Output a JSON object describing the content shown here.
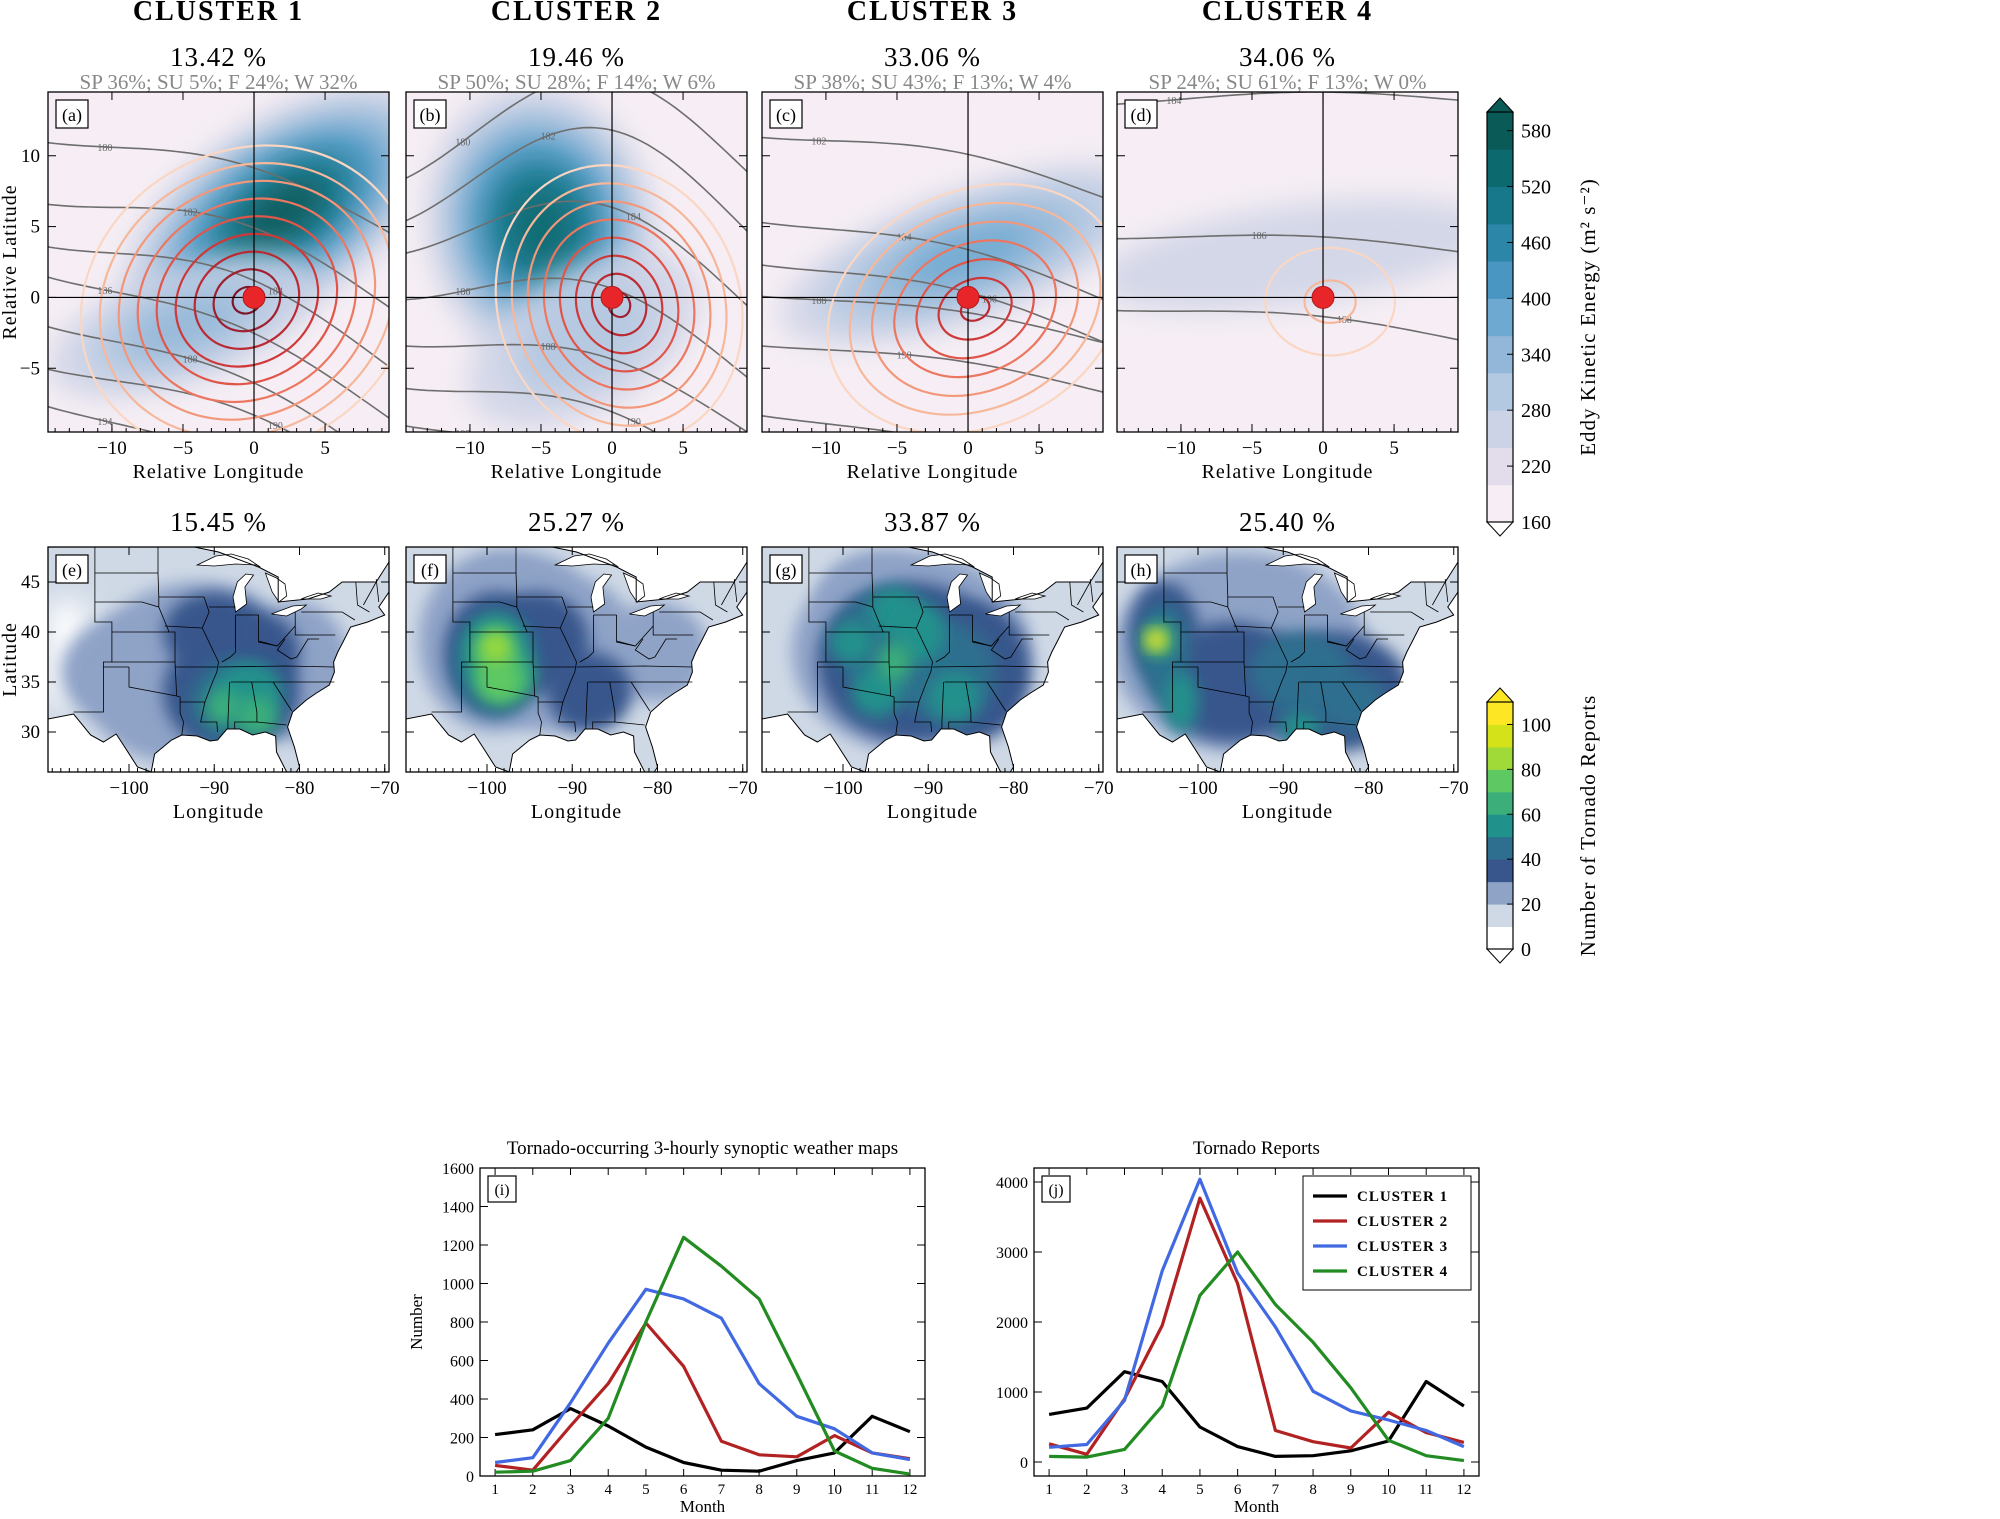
{
  "clusters": [
    {
      "title": "CLUSTER 1",
      "pct_top": "13.42 %",
      "seasons": "SP 36%; SU  5%; F 24%; W 32%",
      "pct_bottom": "15.45 %",
      "label_top": "(a)",
      "label_bottom": "(e)"
    },
    {
      "title": "CLUSTER 2",
      "pct_top": "19.46 %",
      "seasons": "SP 50%; SU 28%; F 14%; W  6%",
      "pct_bottom": "25.27 %",
      "label_top": "(b)",
      "label_bottom": "(f)"
    },
    {
      "title": "CLUSTER 3",
      "pct_top": "33.06 %",
      "seasons": "SP 38%; SU 43%; F 13%; W  4%",
      "pct_bottom": "33.87 %",
      "label_top": "(c)",
      "label_bottom": "(g)"
    },
    {
      "title": "CLUSTER 4",
      "pct_top": "34.06 %",
      "seasons": "SP 24%; SU 61%; F 13%; W  0%",
      "pct_bottom": "25.40 %",
      "label_top": "(d)",
      "label_bottom": "(h)"
    }
  ],
  "composite_maps": {
    "xlabel": "Relative Longitude",
    "ylabel": "Relative Latitude",
    "xticks": [
      -10,
      -5,
      0,
      5
    ],
    "yticks": [
      -5,
      0,
      5,
      10
    ],
    "xrange": [
      -14.5,
      9.5
    ],
    "yrange": [
      -9.5,
      14.5
    ],
    "colorbar": {
      "label": "Eddy Kinetic Energy (m² s⁻²)",
      "ticks": [
        160,
        220,
        280,
        340,
        400,
        460,
        520,
        580
      ],
      "colors": [
        "#f6eef4",
        "#e3dcea",
        "#cdd3e6",
        "#b3c8e1",
        "#93b7d8",
        "#6ea9d1",
        "#4a96c3",
        "#2b86a8",
        "#16788a",
        "#0c6a6f",
        "#0a5a58"
      ]
    }
  },
  "report_maps": {
    "xlabel": "Longitude",
    "ylabel": "Latitude",
    "xticks": [
      -100,
      -90,
      -80,
      -70
    ],
    "yticks": [
      30,
      35,
      40,
      45
    ],
    "xrange": [
      -109.5,
      -69.5
    ],
    "yrange": [
      26,
      48.5
    ],
    "colorbar": {
      "label": "Number of Tornado Reports",
      "ticks": [
        0,
        20,
        40,
        60,
        80,
        100
      ],
      "colors": [
        "#ffffff",
        "#cfd9e6",
        "#8fa3c7",
        "#39568c",
        "#2e6e8e",
        "#21918c",
        "#3bae7a",
        "#5ec962",
        "#a0da39",
        "#d4e21a",
        "#fde725"
      ]
    }
  },
  "line_charts": [
    {
      "type": "line",
      "label": "(i)",
      "title": "Tornado-occurring 3-hourly synoptic weather maps",
      "xlabel": "Month",
      "ylabel": "Number",
      "x": [
        1,
        2,
        3,
        4,
        5,
        6,
        7,
        8,
        9,
        10,
        11,
        12
      ],
      "ylim": [
        0,
        1600
      ],
      "yticks": [
        0,
        200,
        400,
        600,
        800,
        1000,
        1200,
        1400,
        1600
      ],
      "series": [
        {
          "name": "CLUSTER 1",
          "color": "#000000",
          "values": [
            215,
            240,
            350,
            260,
            150,
            70,
            30,
            25,
            80,
            120,
            310,
            230
          ]
        },
        {
          "name": "CLUSTER 2",
          "color": "#b22222",
          "values": [
            55,
            30,
            260,
            480,
            795,
            570,
            180,
            110,
            100,
            210,
            120,
            90
          ]
        },
        {
          "name": "CLUSTER 3",
          "color": "#4169e1",
          "values": [
            70,
            95,
            380,
            690,
            970,
            920,
            820,
            480,
            310,
            245,
            120,
            85
          ]
        },
        {
          "name": "CLUSTER 4",
          "color": "#228b22",
          "values": [
            20,
            25,
            80,
            300,
            800,
            1240,
            1090,
            920,
            530,
            130,
            40,
            10
          ]
        }
      ]
    },
    {
      "type": "line",
      "label": "(j)",
      "title": "Tornado Reports",
      "xlabel": "Month",
      "ylabel": "",
      "x": [
        1,
        2,
        3,
        4,
        5,
        6,
        7,
        8,
        9,
        10,
        11,
        12
      ],
      "ylim": [
        -200,
        4200
      ],
      "yticks": [
        0,
        1000,
        2000,
        3000,
        4000
      ],
      "legend_position": "top-right",
      "series": [
        {
          "name": "CLUSTER 1",
          "color": "#000000",
          "values": [
            680,
            770,
            1290,
            1150,
            500,
            220,
            80,
            90,
            160,
            300,
            1150,
            800
          ]
        },
        {
          "name": "CLUSTER 2",
          "color": "#b22222",
          "values": [
            260,
            110,
            900,
            1950,
            3770,
            2550,
            450,
            290,
            200,
            710,
            420,
            280
          ]
        },
        {
          "name": "CLUSTER 3",
          "color": "#4169e1",
          "values": [
            210,
            250,
            880,
            2730,
            4040,
            2700,
            1930,
            1010,
            730,
            600,
            450,
            220
          ]
        },
        {
          "name": "CLUSTER 4",
          "color": "#228b22",
          "values": [
            80,
            70,
            180,
            800,
            2380,
            3000,
            2250,
            1710,
            1060,
            310,
            90,
            20
          ]
        }
      ]
    }
  ]
}
